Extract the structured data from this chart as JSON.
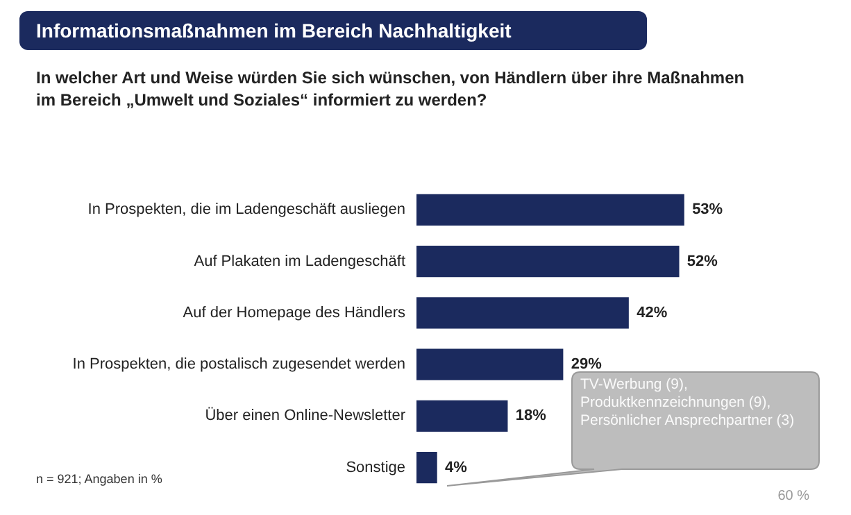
{
  "chart_data": {
    "type": "bar",
    "orientation": "horizontal",
    "title": "Informationsmaßnahmen im Bereich Nachhaltigkeit",
    "subtitle": "In welcher Art und Weise würden Sie sich wünschen, von Händlern über ihre Maßnahmen im Bereich „Umwelt und Soziales“ informiert zu werden?",
    "categories": [
      "In Prospekten, die im Ladengeschäft ausliegen",
      "Auf Plakaten im Ladengeschäft",
      "Auf der Homepage des Händlers",
      "In Prospekten, die postalisch zugesendet werden",
      "Über einen Online-Newsletter",
      "Sonstige"
    ],
    "values": [
      53,
      52,
      42,
      29,
      18,
      4
    ],
    "value_labels": [
      "53%",
      "52%",
      "42%",
      "29%",
      "18%",
      "4%"
    ],
    "color": "#1b2a5e",
    "grid": false,
    "legend": false,
    "tick_labels": "y",
    "annotations": [
      "TV-Werbung (9), Produktkennzeichnungen (9), Persönlicher Ansprechpartner (3)",
      "n = 921; Angaben in %",
      "60 %"
    ]
  }
}
